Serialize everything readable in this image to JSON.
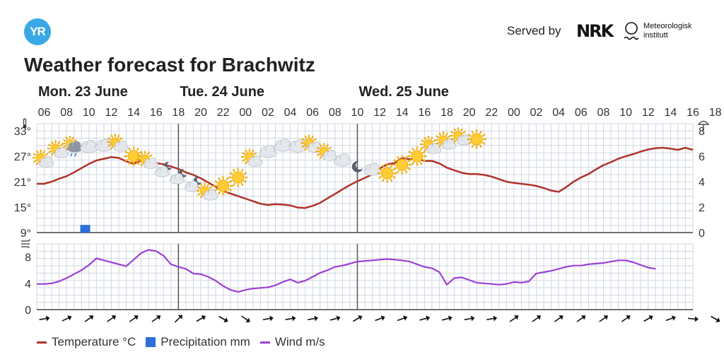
{
  "header": {
    "logo_text": "YR",
    "served_by": "Served by",
    "nrk_text": "NRK",
    "met_line1": "Meteorologisk",
    "met_line2": "institutt"
  },
  "title": "Weather forecast for Brachwitz",
  "colors": {
    "temperature": "#b0322a",
    "precipitation": "#2c6fd6",
    "wind": "#9b40d6",
    "grid": "#cfd6e0",
    "divider": "#555555"
  },
  "chart_data": {
    "type": "line",
    "days": [
      {
        "label": "Mon. 23 June",
        "hour": 5
      },
      {
        "label": "Tue. 24 June",
        "hour": 24
      },
      {
        "label": "Wed. 25 June",
        "hour": 48
      }
    ],
    "hour_range": [
      5,
      67
    ],
    "hour_labels": [
      "06",
      "08",
      "10",
      "12",
      "14",
      "16",
      "18",
      "20",
      "22",
      "00",
      "02",
      "04",
      "06",
      "08",
      "10",
      "12",
      "14",
      "16",
      "18",
      "20",
      "22",
      "00",
      "02",
      "04",
      "06",
      "08",
      "10",
      "12",
      "14",
      "16",
      "18"
    ],
    "temp_axis": {
      "ticks": [
        "33°",
        "27°",
        "21°",
        "15°",
        "9°"
      ],
      "values": [
        33,
        27,
        21,
        15,
        9
      ],
      "range": [
        9,
        33
      ],
      "icon": "thermometer-icon"
    },
    "precip_axis": {
      "ticks": [
        "8",
        "6",
        "4",
        "2",
        "0"
      ],
      "values": [
        8,
        6,
        4,
        2,
        0
      ],
      "range": [
        0,
        8
      ],
      "icon": "umbrella-icon"
    },
    "wind_axis": {
      "ticks": [
        "8",
        "4",
        "0"
      ],
      "values": [
        8,
        4,
        0
      ],
      "range": [
        0,
        10
      ],
      "icon": "wind-icon"
    },
    "temperature": [
      [
        5,
        20.5
      ],
      [
        6,
        20.5
      ],
      [
        7,
        21
      ],
      [
        8,
        21.7
      ],
      [
        9,
        22.3
      ],
      [
        10,
        23.2
      ],
      [
        11,
        24.2
      ],
      [
        12,
        25.2
      ],
      [
        13,
        26
      ],
      [
        14,
        26.4
      ],
      [
        15,
        26.8
      ],
      [
        16,
        26.6
      ],
      [
        17,
        25.8
      ],
      [
        18,
        25.2
      ],
      [
        19,
        26
      ],
      [
        20,
        25.9
      ],
      [
        21,
        25.4
      ],
      [
        22,
        25.1
      ],
      [
        23,
        24.6
      ],
      [
        24,
        24
      ],
      [
        25,
        23.2
      ],
      [
        26,
        22.6
      ],
      [
        27,
        21.8
      ],
      [
        28,
        20.8
      ],
      [
        29,
        19.8
      ],
      [
        30,
        18.8
      ],
      [
        31,
        18.2
      ],
      [
        32,
        17.6
      ],
      [
        33,
        17
      ],
      [
        34,
        16.4
      ],
      [
        35,
        15.8
      ],
      [
        36,
        15.5
      ],
      [
        37,
        15.7
      ],
      [
        38,
        15.6
      ],
      [
        39,
        15.4
      ],
      [
        40,
        14.9
      ],
      [
        41,
        14.8
      ],
      [
        42,
        15.3
      ],
      [
        43,
        16
      ],
      [
        44,
        17.1
      ],
      [
        45,
        18.1
      ],
      [
        46,
        19.2
      ],
      [
        47,
        20.2
      ],
      [
        48,
        21.1
      ],
      [
        49,
        21.9
      ],
      [
        50,
        22.7
      ],
      [
        51,
        24.1
      ],
      [
        52,
        25.1
      ],
      [
        53,
        25.4
      ],
      [
        54,
        26.6
      ],
      [
        55,
        26.3
      ],
      [
        56,
        26.4
      ],
      [
        57,
        25.9
      ],
      [
        58,
        25.9
      ],
      [
        59,
        25.3
      ],
      [
        60,
        24.3
      ],
      [
        61,
        23.7
      ],
      [
        62,
        23.1
      ],
      [
        63,
        22.8
      ],
      [
        64,
        22.8
      ],
      [
        65,
        22.6
      ],
      [
        66,
        22.2
      ],
      [
        67,
        21.6
      ]
    ],
    "temperature_wed": [
      [
        67,
        21.6
      ],
      [
        68,
        21
      ],
      [
        69,
        20.7
      ],
      [
        70,
        20.5
      ],
      [
        71,
        20.3
      ],
      [
        72,
        20
      ],
      [
        73,
        19.5
      ],
      [
        74,
        18.9
      ],
      [
        75,
        18.6
      ],
      [
        76,
        19.7
      ],
      [
        77,
        21
      ],
      [
        78,
        22
      ],
      [
        79,
        22.8
      ],
      [
        80,
        23.9
      ],
      [
        81,
        24.9
      ],
      [
        82,
        25.6
      ],
      [
        83,
        26.4
      ],
      [
        84,
        27
      ],
      [
        85,
        27.5
      ],
      [
        86,
        28.1
      ],
      [
        87,
        28.6
      ],
      [
        88,
        28.9
      ],
      [
        89,
        29
      ],
      [
        90,
        28.8
      ],
      [
        91,
        28.5
      ],
      [
        92,
        29
      ],
      [
        93,
        28.5
      ]
    ],
    "precipitation": [
      {
        "hour": 11.5,
        "value": 0.6
      }
    ],
    "wind": [
      [
        5,
        3.9
      ],
      [
        6,
        3.9
      ],
      [
        7,
        4
      ],
      [
        8,
        4.3
      ],
      [
        9,
        4.8
      ],
      [
        10,
        5.4
      ],
      [
        11,
        6
      ],
      [
        12,
        6.8
      ],
      [
        13,
        7.8
      ],
      [
        14,
        7.5
      ],
      [
        15,
        7.2
      ],
      [
        16,
        6.9
      ],
      [
        17,
        6.6
      ],
      [
        18,
        7.6
      ],
      [
        19,
        8.6
      ],
      [
        20,
        9.1
      ],
      [
        21,
        8.9
      ],
      [
        22,
        8.2
      ],
      [
        23,
        6.9
      ],
      [
        24,
        6.5
      ],
      [
        25,
        6.2
      ],
      [
        26,
        5.5
      ],
      [
        27,
        5.4
      ],
      [
        28,
        5
      ],
      [
        29,
        4.4
      ],
      [
        30,
        3.6
      ],
      [
        31,
        3
      ],
      [
        32,
        2.7
      ],
      [
        33,
        3
      ],
      [
        34,
        3.2
      ],
      [
        35,
        3.3
      ],
      [
        36,
        3.4
      ],
      [
        37,
        3.7
      ],
      [
        38,
        4.2
      ],
      [
        39,
        4.6
      ],
      [
        40,
        4.1
      ],
      [
        41,
        4.4
      ],
      [
        42,
        5
      ],
      [
        43,
        5.6
      ],
      [
        44,
        6
      ],
      [
        45,
        6.5
      ],
      [
        46,
        6.7
      ],
      [
        47,
        7
      ],
      [
        48,
        7.3
      ],
      [
        49,
        7.4
      ],
      [
        50,
        7.5
      ],
      [
        51,
        7.6
      ],
      [
        52,
        7.7
      ],
      [
        53,
        7.6
      ],
      [
        54,
        7.5
      ],
      [
        55,
        7.3
      ],
      [
        56,
        6.9
      ],
      [
        57,
        6.5
      ],
      [
        58,
        6.3
      ],
      [
        59,
        5.7
      ],
      [
        60,
        3.8
      ],
      [
        61,
        4.8
      ],
      [
        62,
        4.9
      ],
      [
        63,
        4.5
      ],
      [
        64,
        4.1
      ],
      [
        65,
        4
      ],
      [
        66,
        3.9
      ],
      [
        67,
        3.8
      ]
    ],
    "wind_wed": [
      [
        67,
        3.8
      ],
      [
        68,
        3.9
      ],
      [
        69,
        4.2
      ],
      [
        70,
        4.1
      ],
      [
        71,
        4.3
      ],
      [
        72,
        5.5
      ],
      [
        73,
        5.7
      ],
      [
        74,
        5.9
      ],
      [
        75,
        6.2
      ],
      [
        76,
        6.5
      ],
      [
        77,
        6.7
      ],
      [
        78,
        6.7
      ],
      [
        79,
        6.9
      ],
      [
        80,
        7
      ],
      [
        81,
        7.1
      ],
      [
        82,
        7.3
      ],
      [
        83,
        7.5
      ],
      [
        84,
        7.5
      ],
      [
        85,
        7.2
      ],
      [
        86,
        6.8
      ],
      [
        87,
        6.4
      ],
      [
        88,
        6.2
      ]
    ],
    "symbols": [
      {
        "hour": 6,
        "temp": 25.8,
        "type": "partly-cloudy-day"
      },
      {
        "hour": 8,
        "temp": 28.0,
        "type": "partly-cloudy-day"
      },
      {
        "hour": 10,
        "temp": 29.0,
        "type": "rain-shower"
      },
      {
        "hour": 12,
        "temp": 29.2,
        "type": "cloudy"
      },
      {
        "hour": 14,
        "temp": 29.5,
        "type": "cloudy"
      },
      {
        "hour": 16,
        "temp": 29.5,
        "type": "partly-cloudy-day"
      },
      {
        "hour": 18,
        "temp": 27.0,
        "type": "clear-day"
      },
      {
        "hour": 20,
        "temp": 25.5,
        "type": "partly-cloudy-day"
      },
      {
        "hour": 22,
        "temp": 23.5,
        "type": "partly-cloudy-night"
      },
      {
        "hour": 24,
        "temp": 21.8,
        "type": "partly-cloudy-night"
      },
      {
        "hour": 26,
        "temp": 20.0,
        "type": "partly-cloudy-night"
      },
      {
        "hour": 28,
        "temp": 18.0,
        "type": "partly-cloudy-day"
      },
      {
        "hour": 30,
        "temp": 20.0,
        "type": "clear-day"
      },
      {
        "hour": 32,
        "temp": 22.0,
        "type": "clear-day"
      },
      {
        "hour": 34,
        "temp": 26.0,
        "type": "partly-cloudy-day"
      },
      {
        "hour": 36,
        "temp": 28.0,
        "type": "cloudy"
      },
      {
        "hour": 38,
        "temp": 29.5,
        "type": "cloudy"
      },
      {
        "hour": 40,
        "temp": 29.3,
        "type": "cloudy"
      },
      {
        "hour": 42,
        "temp": 29.3,
        "type": "partly-cloudy-day"
      },
      {
        "hour": 44,
        "temp": 27.3,
        "type": "partly-cloudy-day"
      },
      {
        "hour": 46,
        "temp": 26.0,
        "type": "cloudy"
      },
      {
        "hour": 48,
        "temp": 24.5,
        "type": "clear-night"
      },
      {
        "hour": 50,
        "temp": 23.8,
        "type": "cloudy"
      },
      {
        "hour": 52,
        "temp": 23.0,
        "type": "clear-day"
      },
      {
        "hour": 54,
        "temp": 25.0,
        "type": "clear-day"
      },
      {
        "hour": 56,
        "temp": 27.0,
        "type": "clear-day"
      },
      {
        "hour": 58,
        "temp": 29.0,
        "type": "partly-cloudy-day"
      },
      {
        "hour": 60,
        "temp": 30.0,
        "type": "partly-cloudy-day"
      },
      {
        "hour": 62,
        "temp": 31.0,
        "type": "partly-cloudy-day"
      },
      {
        "hour": 64,
        "temp": 31.0,
        "type": "clear-day"
      }
    ],
    "wind_directions": [
      80,
      65,
      55,
      55,
      55,
      55,
      45,
      60,
      120,
      125,
      80,
      80,
      80,
      75,
      60,
      70,
      70,
      75,
      75,
      80,
      80,
      55,
      55,
      55,
      55,
      55,
      55,
      60,
      70,
      95,
      120
    ],
    "legend": [
      {
        "key": "temperature",
        "label": "Temperature °C"
      },
      {
        "key": "precipitation",
        "label": "Precipitation mm"
      },
      {
        "key": "wind",
        "label": "Wind m/s"
      }
    ]
  }
}
